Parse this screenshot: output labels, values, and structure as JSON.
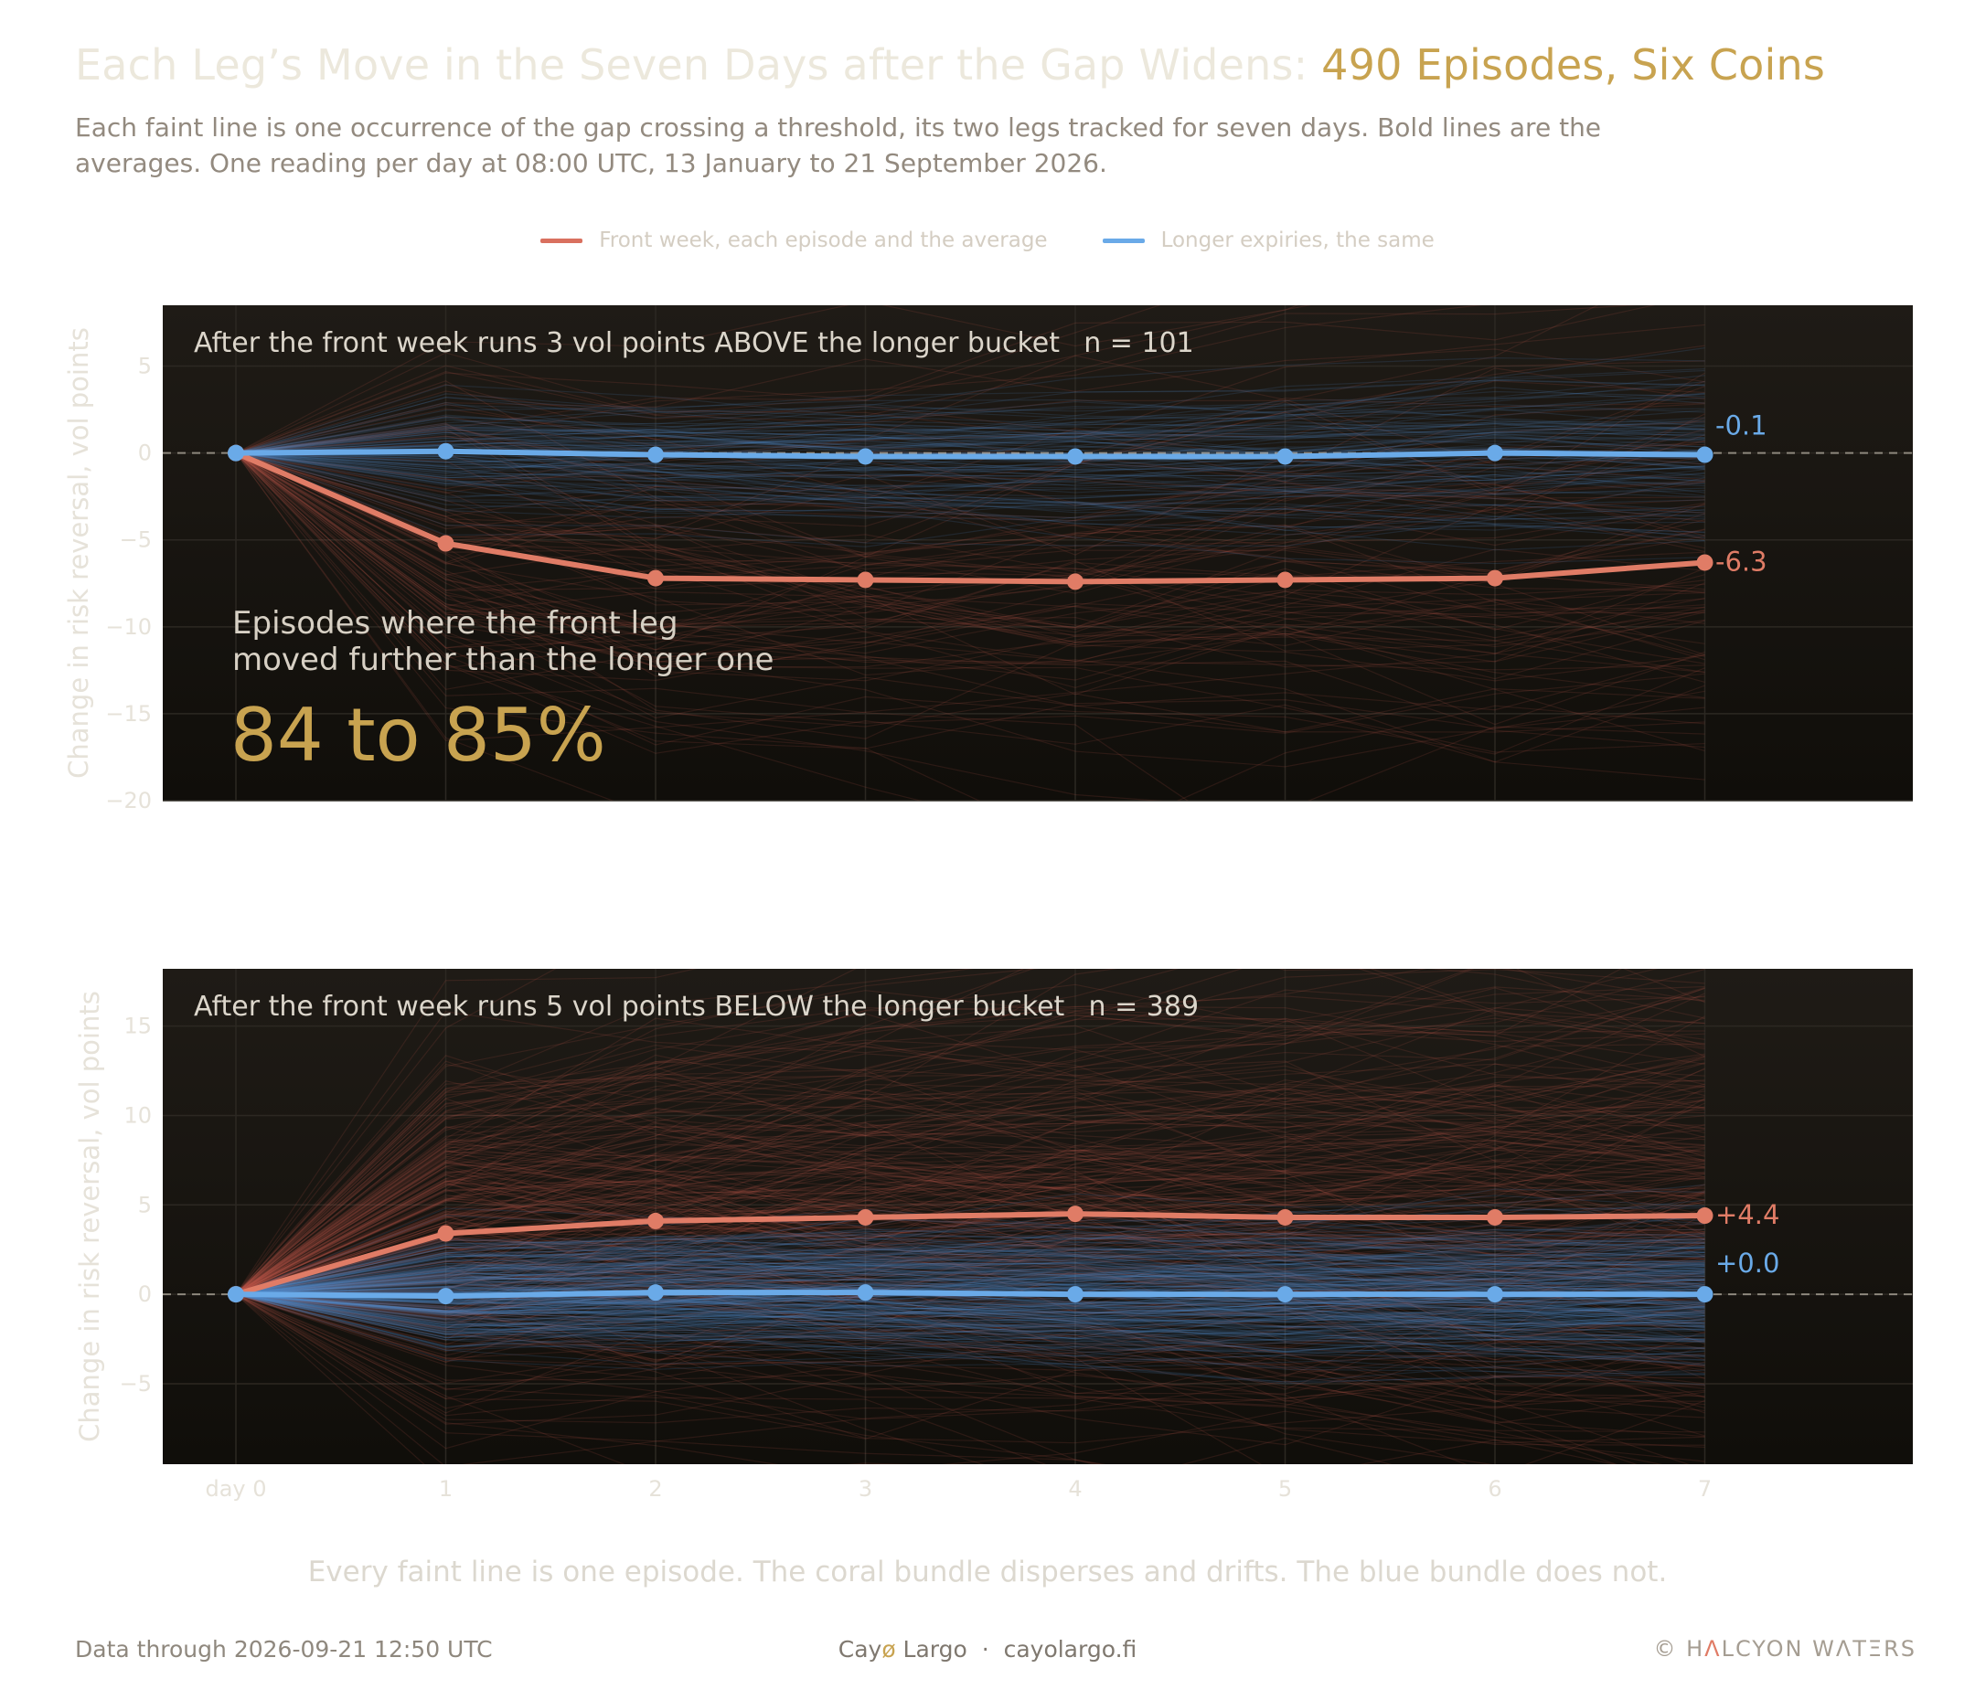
{
  "title": {
    "main": "Each Leg’s Move in the Seven Days after the Gap Widens:",
    "highlight": "490 Episodes, Six Coins"
  },
  "subtitle": "Each faint line is one occurrence of the gap crossing a threshold, its two legs tracked for seven days. Bold lines are the averages. One reading per day at 08:00 UTC, 13 January to 21 September 2026.",
  "legend": [
    {
      "label": "Front week, each episode and the average",
      "color": "#d9705f"
    },
    {
      "label": "Longer expiries, the same",
      "color": "#6aaae8"
    }
  ],
  "callout": {
    "text_line1": "Episodes where the front leg",
    "text_line2": "moved further than the longer one",
    "value": "84 to 85%"
  },
  "caption": "Every faint line is one episode. The coral bundle disperses and drifts. The blue bundle does not.",
  "footer": {
    "left": "Data through 2026-09-21 12:50 UTC",
    "center_brand_a": "Cay",
    "center_brand_o": "ø",
    "center_brand_b": " Largo",
    "center_sep": "·",
    "center_site": "cayolargo.fi",
    "right_symbol": "©",
    "right_h": "H",
    "right_a": "Λ",
    "right_rest": "LCYON WΛTΞRS"
  },
  "chart_data": [
    {
      "type": "line",
      "title": "After the front week runs 3 vol points ABOVE the longer bucket",
      "n_label": "n = 101",
      "n": 101,
      "ylabel": "Change in risk reversal, vol points",
      "x": [
        0,
        1,
        2,
        3,
        4,
        5,
        6,
        7
      ],
      "xticks": [
        "day 0",
        "1",
        "2",
        "3",
        "4",
        "5",
        "6",
        "7"
      ],
      "ylim": [
        -20,
        8.5
      ],
      "yticks": [
        5,
        0,
        -5,
        -10,
        -15,
        -20
      ],
      "ytick_labels": [
        "5",
        "0",
        "−5",
        "−10",
        "−15",
        "−20"
      ],
      "series": [
        {
          "key": "front",
          "color": "#e07c66",
          "values": [
            0,
            -5.2,
            -7.2,
            -7.3,
            -7.4,
            -7.3,
            -7.2,
            -6.3
          ],
          "end_label": "-6.3"
        },
        {
          "key": "longer",
          "color": "#6aaae8",
          "values": [
            0,
            0.1,
            -0.1,
            -0.2,
            -0.2,
            -0.2,
            0.0,
            -0.1
          ],
          "end_label": "-0.1"
        }
      ]
    },
    {
      "type": "line",
      "title": "After the front week runs 5 vol points BELOW the longer bucket",
      "n_label": "n = 389",
      "n": 389,
      "ylabel": "Change in risk reversal, vol points",
      "x": [
        0,
        1,
        2,
        3,
        4,
        5,
        6,
        7
      ],
      "xticks": [
        "day 0",
        "1",
        "2",
        "3",
        "4",
        "5",
        "6",
        "7"
      ],
      "ylim": [
        -9.5,
        18.2
      ],
      "yticks": [
        15,
        10,
        5,
        0,
        -5
      ],
      "ytick_labels": [
        "15",
        "10",
        "5",
        "0",
        "−5"
      ],
      "series": [
        {
          "key": "front",
          "color": "#e07c66",
          "values": [
            0,
            3.4,
            4.1,
            4.3,
            4.5,
            4.3,
            4.3,
            4.4
          ],
          "end_label": "+4.4"
        },
        {
          "key": "longer",
          "color": "#6aaae8",
          "values": [
            0,
            -0.1,
            0.1,
            0.1,
            0.0,
            0.0,
            0.0,
            0.0
          ],
          "end_label": "+0.0"
        }
      ]
    }
  ]
}
